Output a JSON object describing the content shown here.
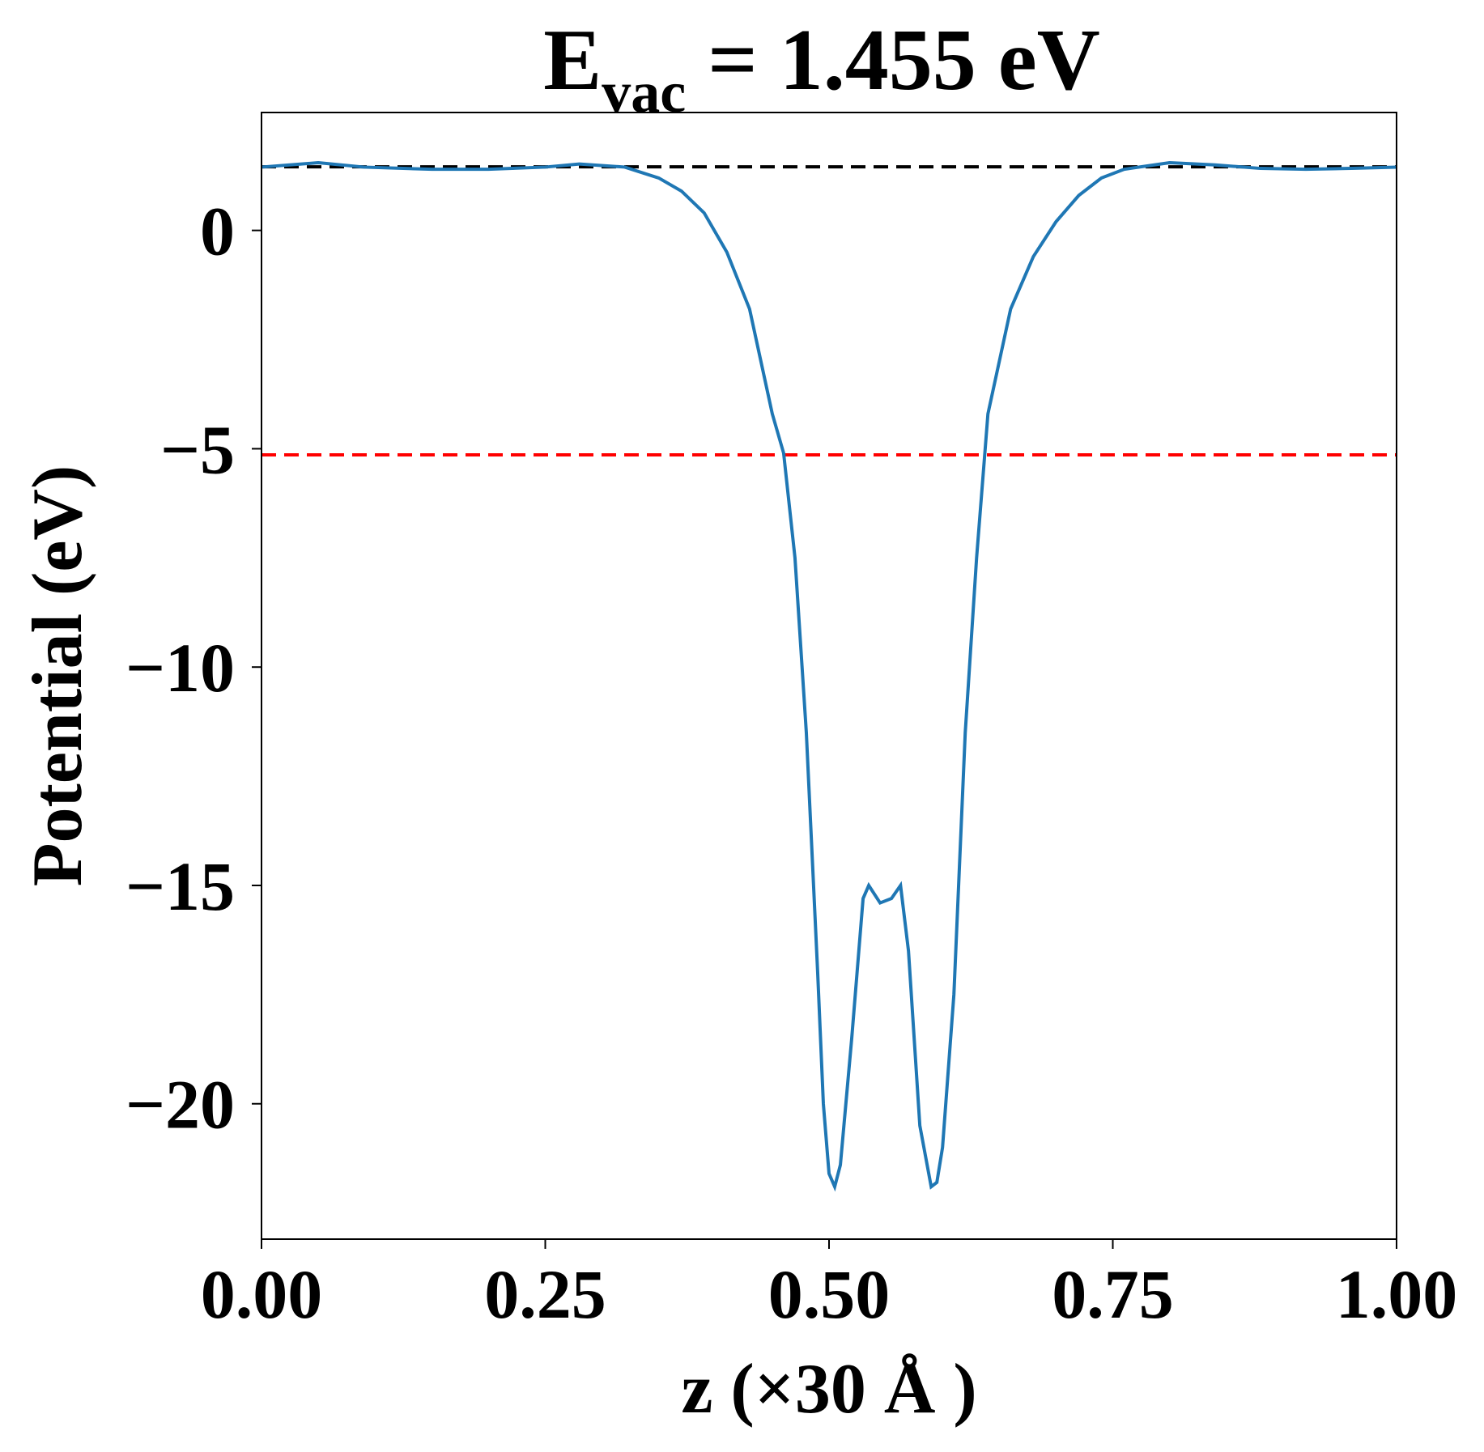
{
  "chart_data": {
    "type": "line",
    "title": "E",
    "title_subscript": "vac",
    "title_rest": " = 1.455 eV",
    "xlabel": "z (×30 Å )",
    "ylabel": "Potential (eV)",
    "x": [
      0,
      0.05,
      0.09,
      0.15,
      0.2,
      0.25,
      0.28,
      0.32,
      0.35,
      0.37,
      0.39,
      0.41,
      0.43,
      0.44,
      0.45,
      0.46,
      0.47,
      0.48,
      0.49,
      0.495,
      0.5,
      0.505,
      0.51,
      0.52,
      0.53,
      0.535,
      0.545,
      0.555,
      0.563,
      0.57,
      0.58,
      0.59,
      0.595,
      0.6,
      0.61,
      0.62,
      0.63,
      0.64,
      0.65,
      0.66,
      0.68,
      0.7,
      0.72,
      0.74,
      0.76,
      0.8,
      0.84,
      0.88,
      0.92,
      0.96,
      1.0
    ],
    "series": [
      {
        "color": "#1f77b4",
        "values": [
          1.45,
          1.55,
          1.45,
          1.4,
          1.4,
          1.45,
          1.52,
          1.45,
          1.2,
          0.9,
          0.4,
          -0.5,
          -1.8,
          -3.0,
          -4.2,
          -5.1,
          -7.5,
          -11.5,
          -17,
          -20,
          -21.6,
          -21.9,
          -21.4,
          -18.5,
          -15.3,
          -15.0,
          -15.4,
          -15.3,
          -15.0,
          -16.5,
          -20.5,
          -21.9,
          -21.8,
          -21.0,
          -17.5,
          -11.5,
          -7.5,
          -4.2,
          -3.0,
          -1.8,
          -0.6,
          0.2,
          0.8,
          1.2,
          1.4,
          1.55,
          1.5,
          1.42,
          1.4,
          1.42,
          1.45
        ]
      }
    ],
    "hlines": [
      {
        "value": 1.455,
        "color": "#000000"
      },
      {
        "value": -5.14,
        "color": "#ff0000"
      }
    ],
    "xlim": [
      0,
      1
    ],
    "ylim": [
      -23.1,
      2.7
    ],
    "xticks": [
      {
        "value": 0,
        "label": "0.00"
      },
      {
        "value": 0.25,
        "label": "0.25"
      },
      {
        "value": 0.5,
        "label": "0.50"
      },
      {
        "value": 0.75,
        "label": "0.75"
      },
      {
        "value": 1,
        "label": "1.00"
      }
    ],
    "yticks": [
      {
        "value": -20,
        "label": "−20"
      },
      {
        "value": -15,
        "label": "−15"
      },
      {
        "value": -10,
        "label": "−10"
      },
      {
        "value": -5,
        "label": "−5"
      },
      0
    ]
  }
}
